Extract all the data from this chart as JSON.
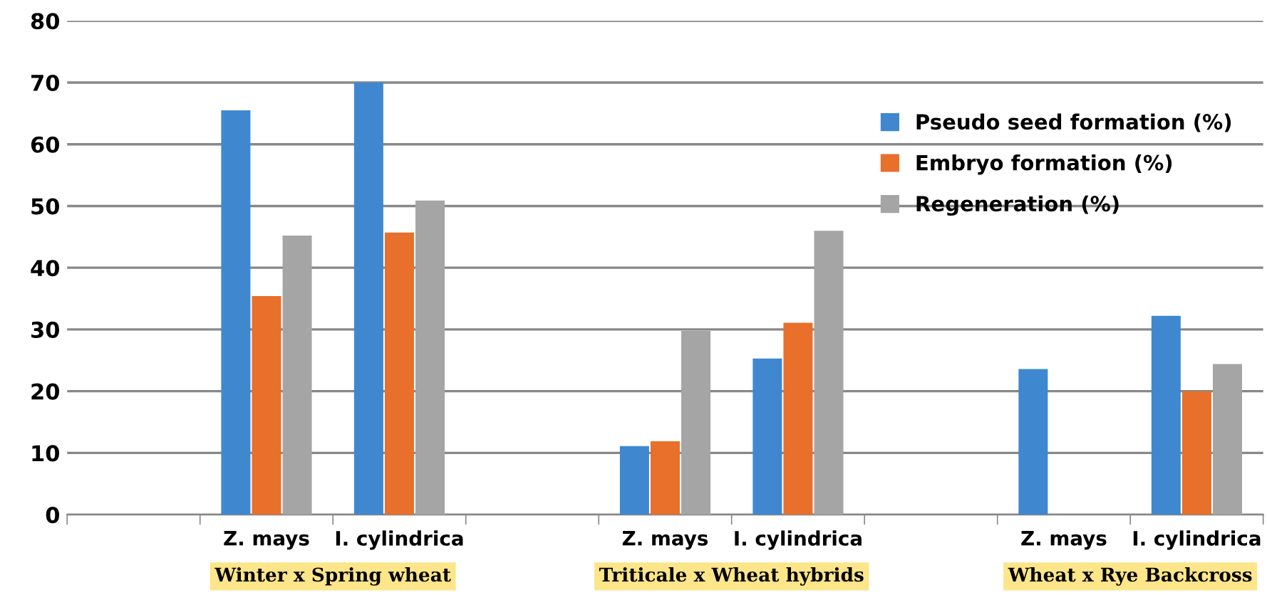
{
  "chart_data": {
    "type": "bar",
    "categories": [
      null,
      "Z. mays",
      "I. cylindrica",
      null,
      "Z. mays",
      "I. cylindrica",
      null,
      "Z. mays",
      "I. cylindrica"
    ],
    "series": [
      {
        "name": "Pseudo seed formation (%)",
        "color": "#3f88d0",
        "values": [
          null,
          65.5,
          70,
          null,
          11.1,
          25.3,
          null,
          23.6,
          32.2
        ]
      },
      {
        "name": "Embryo formation (%)",
        "color": "#e8702a",
        "values": [
          null,
          35.4,
          45.7,
          null,
          11.9,
          31.1,
          null,
          null,
          20.0
        ]
      },
      {
        "name": "Regeneration (%)",
        "color": "#a5a5a5",
        "values": [
          null,
          45.2,
          50.9,
          null,
          29.8,
          46.0,
          null,
          null,
          24.4
        ]
      }
    ],
    "ylim": [
      0,
      80
    ],
    "yticks": [
      0,
      10,
      20,
      30,
      40,
      50,
      60,
      70,
      80
    ],
    "grid": "y",
    "legend": "top right",
    "annotations": [
      "Winter x Spring wheat",
      "Triticale x Wheat hybrids",
      "Wheat x Rye Backcross"
    ]
  }
}
